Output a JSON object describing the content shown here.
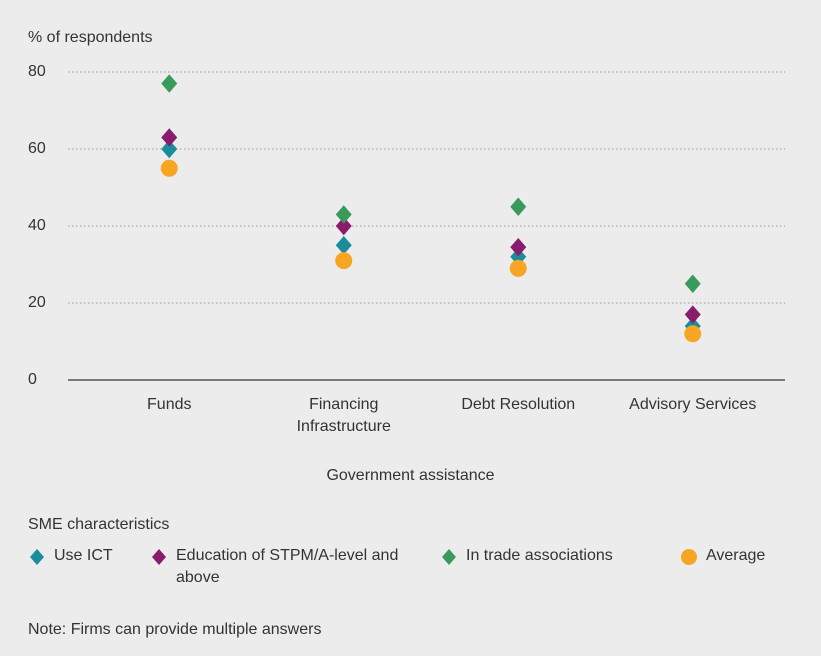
{
  "chart_data": {
    "type": "dot",
    "y_label": "% of respondents",
    "x_label": "Government assistance",
    "legend_title": "SME characteristics",
    "note": "Note: Firms can provide multiple answers",
    "categories": [
      "Funds",
      "Financing Infrastructure",
      "Debt Resolution",
      "Advisory Services"
    ],
    "series": [
      {
        "name": "Use ICT",
        "color": "#1b8c9c",
        "marker": "diamond",
        "values": [
          60,
          35,
          32,
          14
        ]
      },
      {
        "name": "Education of STPM/A-level and above",
        "color": "#8a1c6c",
        "marker": "diamond",
        "values": [
          63,
          40,
          34.5,
          17
        ]
      },
      {
        "name": "In trade associations",
        "color": "#3a9a5c",
        "marker": "diamond",
        "values": [
          77,
          43,
          45,
          25
        ]
      },
      {
        "name": "Average",
        "color": "#f6a623",
        "marker": "circle",
        "values": [
          55,
          31,
          29,
          12
        ]
      }
    ],
    "ylim": [
      0,
      80
    ],
    "yticks": [
      0,
      20,
      40,
      60,
      80
    ],
    "grid": true
  }
}
